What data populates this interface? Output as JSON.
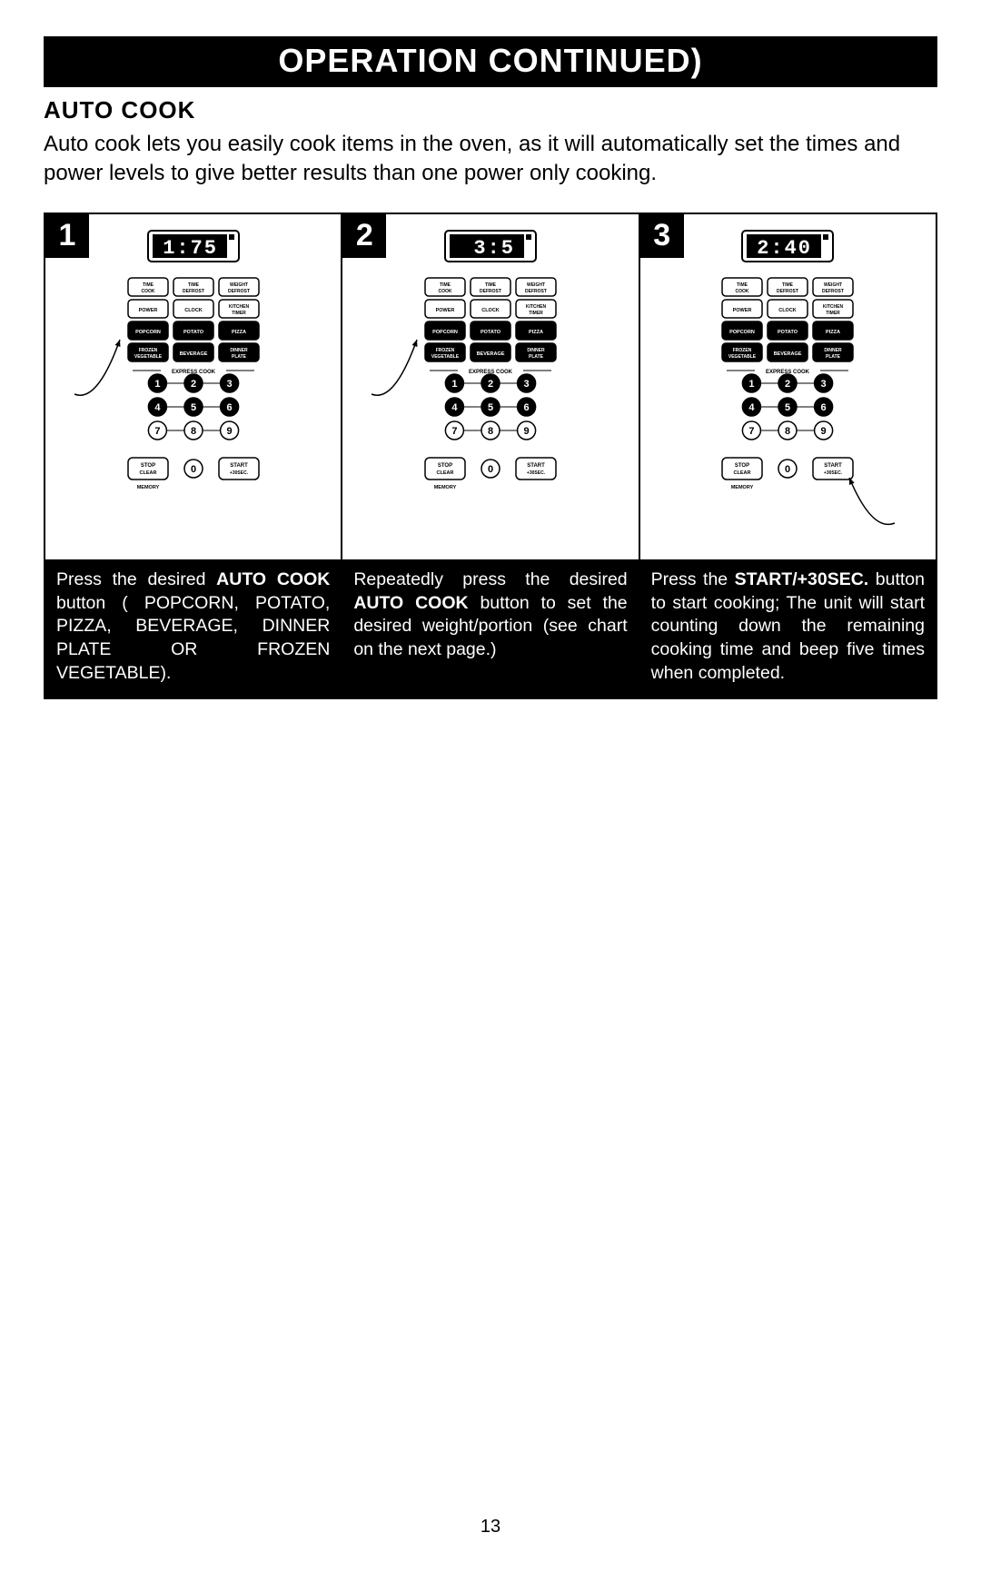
{
  "title_bar": "OPERATION   CONTINUED)",
  "section_heading": "AUTO COOK",
  "intro": "Auto cook lets you easily cook items in the oven, as it will automatically set the times and power levels to give better results than one power only cooking.",
  "page_number": "13",
  "panel": {
    "row1": [
      "TIME COOK",
      "TIME DEFROST",
      "WEIGHT DEFROST"
    ],
    "row2": [
      "POWER",
      "CLOCK",
      "KITCHEN TIMER"
    ],
    "row3": [
      "POPCORN",
      "POTATO",
      "PIZZA"
    ],
    "row4": [
      "FROZEN VEGETABLE",
      "BEVERAGE",
      "DINNER PLATE"
    ],
    "express_label": "EXPRESS COOK",
    "bottom": {
      "stop": "STOP CLEAR",
      "zero": "0",
      "start": [
        "START",
        "+30SEC."
      ]
    },
    "memory": "MEMORY",
    "digit_font": "monospace"
  },
  "steps": [
    {
      "num": "1",
      "display": "1:75",
      "arrow_target": "row3",
      "text_parts": [
        {
          "t": "Press the desired ",
          "b": false
        },
        {
          "t": "AUTO COOK",
          "b": true
        },
        {
          "t": " button  ( POPCORN, POTATO, PIZZA,  BEVERAGE, DINNER PLATE OR FROZEN VEGETABLE).",
          "b": false
        }
      ]
    },
    {
      "num": "2",
      "display": "3:5 ",
      "arrow_target": "row3",
      "text_parts": [
        {
          "t": "Repeatedly  press  the  desired ",
          "b": false
        },
        {
          "t": "AUTO COOK",
          "b": true
        },
        {
          "t": " button to set the desired  weight/portion  (see chart on the next  page.)",
          "b": false
        }
      ]
    },
    {
      "num": "3",
      "display": "2:40",
      "arrow_target": "start",
      "text_parts": [
        {
          "t": "Press  the  ",
          "b": false
        },
        {
          "t": "START/+30SEC.",
          "b": true
        },
        {
          "t": " button to start cooking; The unit will  start  counting  down  the remaining cooking time and beep five times when completed.",
          "b": false
        }
      ]
    }
  ],
  "style": {
    "title_bg": "#000000",
    "title_fg": "#ffffff",
    "caption_bg": "#000000",
    "caption_fg": "#ffffff",
    "border": "#000000",
    "display_bg": "#000000",
    "display_fg": "#ffffff"
  }
}
